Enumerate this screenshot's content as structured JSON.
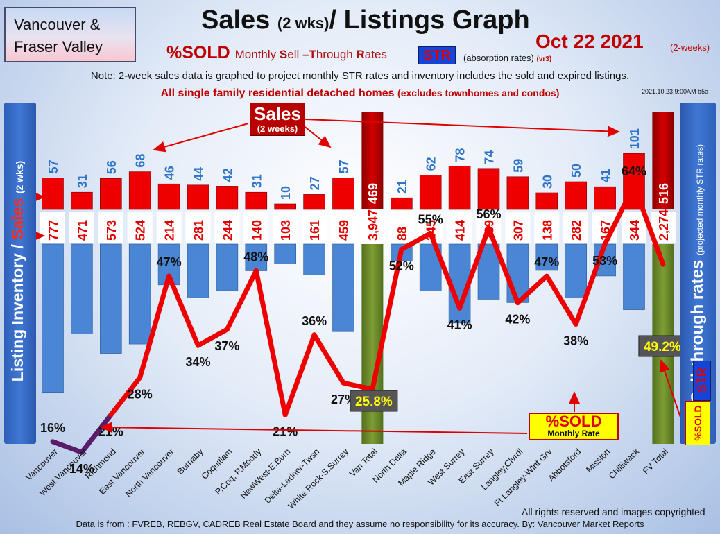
{
  "region_label": "Vancouver & Fraser Valley",
  "title": {
    "main": "Sales",
    "paren": "(2 wks)",
    "rest": "/ Listings Graph"
  },
  "date": {
    "text": "Oct  22  2021",
    "sub": "(2-weeks)"
  },
  "subtitle": {
    "sold": "%SOLD",
    "monthly_prefix": "Monthly ",
    "S": "S",
    "ell": "ell ",
    "dash": "–",
    "T": "T",
    "hrough": "hrough ",
    "R": "R",
    "ates": "ates",
    "str_badge": "STR",
    "absorption": "(absorption rates)",
    "version": "(vr3)"
  },
  "note": "Note: 2-week sales data is graphed to project monthly STR rates and inventory includes the sold and expired listings.",
  "note2": {
    "main": "All single family residential detached homes",
    "sub": "(excludes townhomes and condos)"
  },
  "timestamp": "2021.10.23.9:00AM b5a",
  "left_axis": {
    "inventory": "Listing Inventory / ",
    "sales": "Sales",
    "wks": "(2  wks)"
  },
  "right_axis": {
    "main": "Sell-through rates",
    "sub": "(projected monthly STR rates)"
  },
  "vertical_badges": {
    "str": "STR",
    "sold": "%SOLD"
  },
  "callouts": {
    "sales_big": "Sales",
    "sales_small": "(2 weeks)",
    "sold_big": "%SOLD",
    "sold_small": "Monthly Rate"
  },
  "footer_rights": "All rights reserved and  images copyrighted",
  "footer": "Data is from : FVREB, REBGV, CADREB Real Estate Board and they assume no responsibility for its accuracy. By: Vancouver Market Reports",
  "colors": {
    "sales_bar": "#ee0000",
    "inventory_bar": "#4a86d4",
    "total_bar": "#6f8d2c",
    "str_line": "#ee0000",
    "sales_label": "#2e74c8",
    "inventory_label": "#e00000"
  },
  "chart_data": {
    "type": "bar",
    "categories": [
      "Vancouver",
      "West Vancouver",
      "Richmond",
      "East Vancouver",
      "North Vancouver",
      "Burnaby",
      "Coquitlam",
      "P.Coq, P.Moody",
      "NewWest-E.Burn",
      "Delta-Ladner-Twsn",
      "White Rock-S.Surrey",
      "Van Total",
      "North Delta",
      "Maple Ridge",
      "West Surrey",
      "East Surrey",
      "Langley,Clvrdl",
      "Ft Langley-Wlnt Grv",
      "Abbotsford",
      "Mission",
      "Chilliwack",
      "FV Total"
    ],
    "series": [
      {
        "name": "Sales",
        "values": [
          57,
          31,
          56,
          68,
          46,
          44,
          42,
          31,
          10,
          27,
          57,
          469,
          21,
          62,
          78,
          74,
          59,
          30,
          50,
          41,
          101,
          516
        ]
      },
      {
        "name": "Listing Inventory",
        "values": [
          777,
          471,
          573,
          524,
          214,
          281,
          244,
          140,
          103,
          161,
          459,
          3947,
          88,
          245,
          414,
          289,
          307,
          138,
          282,
          167,
          344,
          2274
        ]
      },
      {
        "name": "%SOLD",
        "values": [
          16,
          14,
          21,
          28,
          47,
          34,
          37,
          48,
          21,
          36,
          27,
          25.8,
          52,
          55,
          41,
          56,
          42,
          47,
          38,
          53,
          64,
          49.2
        ]
      }
    ],
    "sales_labels": [
      "57",
      "31",
      "56",
      "68",
      "46",
      "44",
      "42",
      "31",
      "10",
      "27",
      "57",
      "469",
      "21",
      "62",
      "78",
      "74",
      "59",
      "30",
      "50",
      "41",
      "101",
      "516"
    ],
    "inventory_labels": [
      "777",
      "471",
      "573",
      "524",
      "214",
      "281",
      "244",
      "140",
      "103",
      "161",
      "459",
      "3,947",
      "88",
      "245",
      "414",
      "289",
      "307",
      "138",
      "282",
      "167",
      "344",
      "2,274"
    ],
    "pct_labels": [
      "16%",
      "14%",
      "21%",
      "28%",
      "47%",
      "34%",
      "37%",
      "48%",
      "21%",
      "36%",
      "27%",
      "25.8%",
      "52%",
      "55%",
      "41%",
      "56%",
      "42%",
      "47%",
      "38%",
      "53%",
      "64%",
      "49.2%"
    ],
    "total_indices": [
      11,
      21
    ]
  }
}
